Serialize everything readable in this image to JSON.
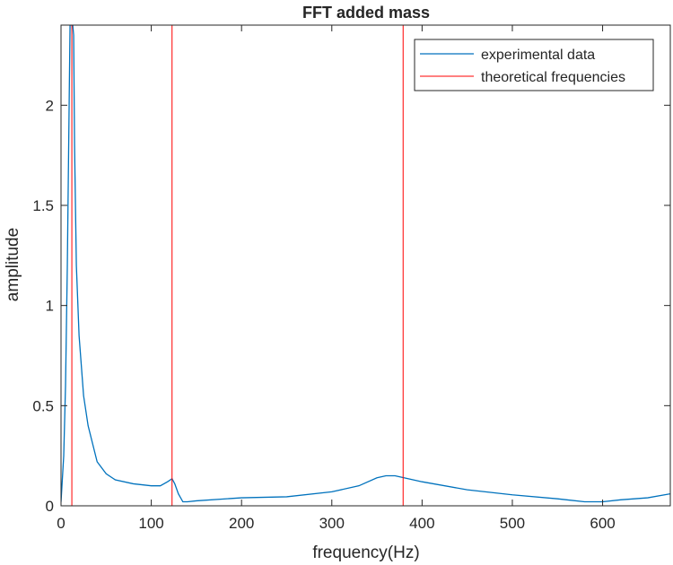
{
  "chart_data": {
    "type": "line",
    "title": "FFT added mass",
    "xlabel": "frequency(Hz)",
    "ylabel": "amplitude",
    "xlim": [
      0,
      675
    ],
    "ylim": [
      0,
      2.4
    ],
    "xticks": [
      0,
      100,
      200,
      300,
      400,
      500,
      600
    ],
    "yticks": [
      0,
      0.5,
      1,
      1.5,
      2
    ],
    "xtick_labels": [
      "0",
      "100",
      "200",
      "300",
      "400",
      "500",
      "600"
    ],
    "ytick_labels": [
      "0",
      "0.5",
      "1",
      "1.5",
      "2"
    ],
    "grid": false,
    "legend_placement": "top-right",
    "series": [
      {
        "name": "experimental data",
        "color": "#0072bd",
        "x": [
          0,
          3,
          5,
          7,
          9,
          10,
          11,
          12,
          13,
          14,
          15,
          17,
          20,
          25,
          30,
          40,
          50,
          60,
          80,
          100,
          110,
          118,
          123,
          126,
          130,
          135,
          140,
          150,
          200,
          250,
          300,
          330,
          350,
          360,
          370,
          380,
          400,
          450,
          500,
          550,
          580,
          600,
          620,
          650,
          675
        ],
        "y": [
          0.02,
          0.25,
          0.6,
          1.2,
          2.0,
          2.4,
          2.4,
          2.4,
          2.4,
          2.35,
          1.8,
          1.2,
          0.85,
          0.55,
          0.4,
          0.22,
          0.16,
          0.13,
          0.11,
          0.1,
          0.1,
          0.12,
          0.135,
          0.11,
          0.06,
          0.02,
          0.02,
          0.025,
          0.04,
          0.045,
          0.07,
          0.1,
          0.14,
          0.15,
          0.15,
          0.14,
          0.12,
          0.08,
          0.055,
          0.035,
          0.02,
          0.02,
          0.03,
          0.04,
          0.06
        ]
      },
      {
        "name": "theoretical frequencies",
        "color": "#ff0000",
        "vlines": [
          12,
          123,
          379
        ]
      }
    ]
  }
}
